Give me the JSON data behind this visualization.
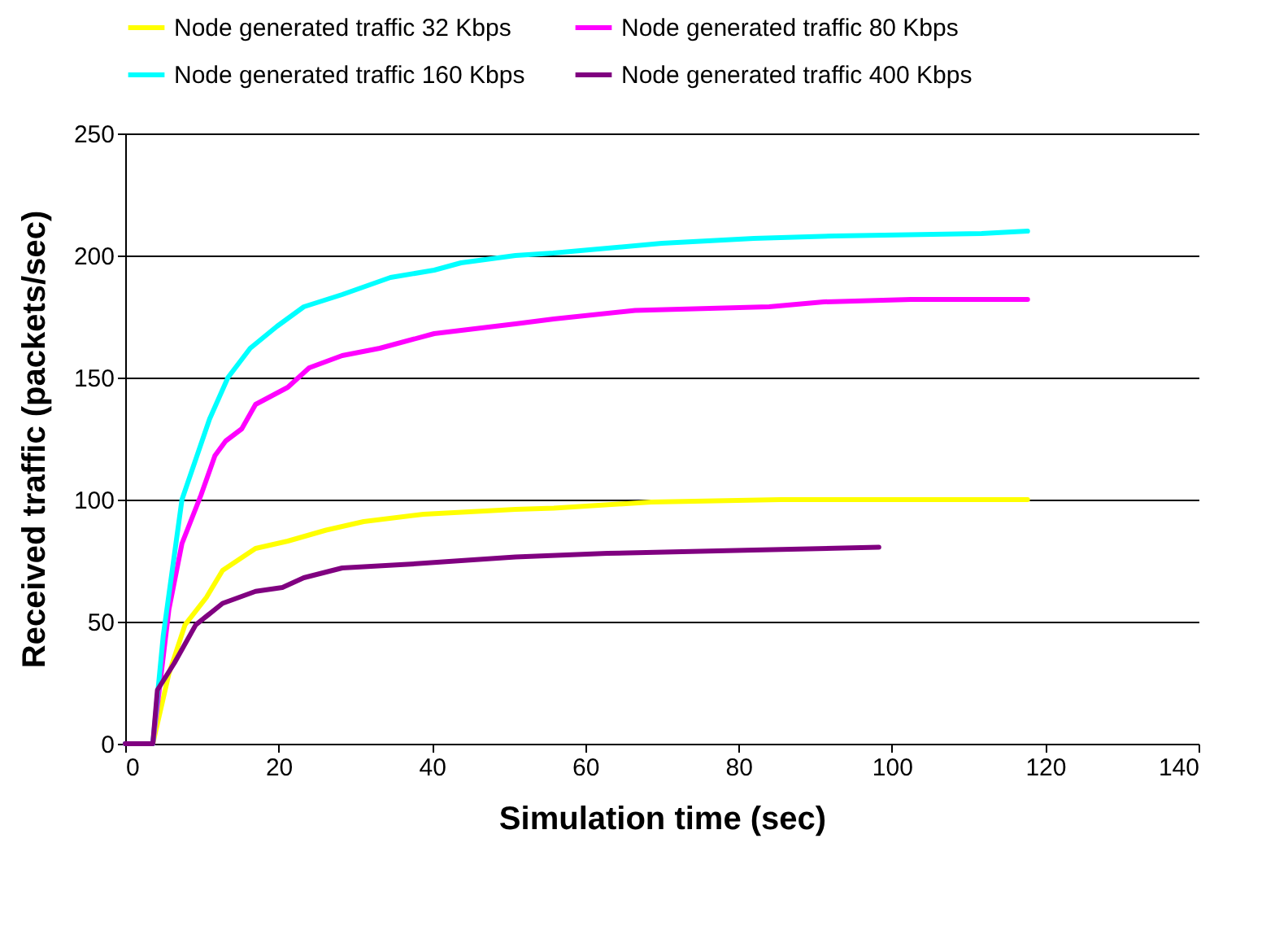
{
  "chart_data": {
    "type": "line",
    "xlabel": "Simulation time (sec)",
    "ylabel": "Received traffic (packets/sec)",
    "xlim": [
      0,
      140
    ],
    "xticks": [
      0,
      20,
      40,
      60,
      80,
      100,
      120,
      140
    ],
    "ylim": [
      0,
      250
    ],
    "yticks": [
      0,
      50,
      100,
      150,
      200,
      250
    ],
    "grid": "y",
    "legend": "top",
    "marker": "none",
    "line_style": "solid",
    "series": [
      {
        "name": "Node generated traffic 32 Kbps",
        "color": "#ffff00",
        "x": [
          0,
          3.6,
          5.7,
          7.8,
          10.6,
          12.7,
          17,
          21.2,
          26.2,
          31.1,
          38.9,
          50.9,
          55.9,
          68.6,
          85.5,
          117.7
        ],
        "values": [
          0,
          0,
          28.7,
          48.7,
          60,
          71,
          80,
          83,
          87.5,
          91,
          94,
          96,
          96.5,
          99,
          100,
          100
        ]
      },
      {
        "name": "Node generated traffic 80  Kbps",
        "color": "#ff00ff",
        "x": [
          0,
          3.6,
          5.7,
          7.4,
          9.9,
          11.7,
          13.1,
          15.2,
          17,
          21.2,
          24,
          28.3,
          33.2,
          40.3,
          50.9,
          55.9,
          66.5,
          84,
          91.1,
          102.5,
          117.7
        ],
        "values": [
          0,
          0,
          55,
          82,
          102,
          118,
          124,
          129,
          139,
          146,
          154,
          159,
          162,
          168,
          172,
          174,
          177.5,
          179,
          181,
          182,
          182
        ]
      },
      {
        "name": "Node generated traffic 160  Kbps",
        "color": "#00ffff",
        "x": [
          0,
          3.6,
          4.95,
          7.4,
          11,
          13.4,
          16.3,
          19.8,
          23.3,
          28.3,
          34.6,
          40.3,
          43.8,
          50.9,
          55.8,
          70,
          82,
          92.6,
          111.7,
          117.7
        ],
        "values": [
          0,
          0,
          44,
          100,
          133,
          150,
          162,
          171,
          179,
          184,
          191,
          194,
          197,
          200,
          201,
          205,
          207,
          208,
          209,
          210
        ]
      },
      {
        "name": "Node generated traffic 400  Kbps",
        "color": "#800080",
        "x": [
          0,
          3.6,
          4.2,
          6.4,
          9.2,
          12.7,
          17,
          20.5,
          23.3,
          28.3,
          36.8,
          43.8,
          50.9,
          62.9,
          82,
          98.3
        ],
        "values": [
          0,
          0,
          22,
          33,
          48.7,
          57.5,
          62.4,
          64,
          68,
          72,
          73.5,
          75,
          76.5,
          78,
          79.3,
          80.5
        ]
      }
    ]
  }
}
